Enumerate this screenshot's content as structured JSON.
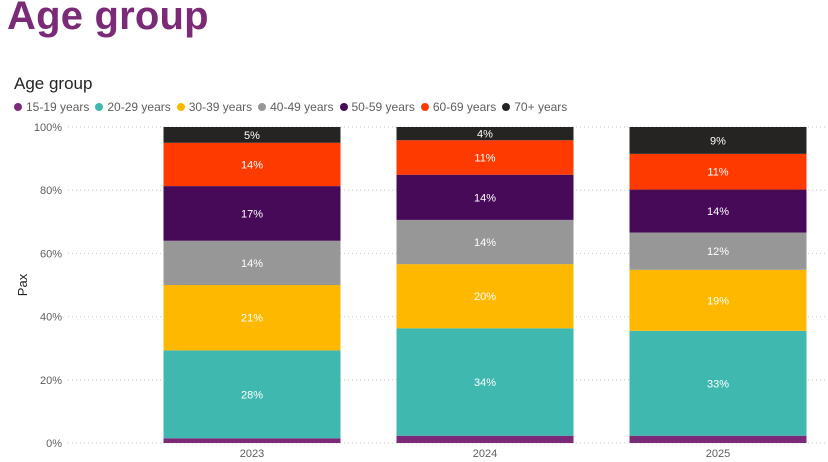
{
  "page": {
    "title": "Age group"
  },
  "chart_data": {
    "type": "bar",
    "stacked": true,
    "title": "Age group",
    "xlabel": "",
    "ylabel": "Pax",
    "ylim": [
      0,
      100
    ],
    "yticks": [
      "0%",
      "20%",
      "40%",
      "60%",
      "80%",
      "100%"
    ],
    "grid": true,
    "legend_position": "top-left",
    "categories": [
      "2023",
      "2024",
      "2025"
    ],
    "series": [
      {
        "name": "15-19 years",
        "color": "#7b2a78",
        "values": [
          1.5,
          2.3,
          2.3
        ],
        "labels": [
          "",
          "",
          ""
        ]
      },
      {
        "name": "20-29 years",
        "color": "#3fb8b0",
        "values": [
          27.8,
          34.0,
          33.2
        ],
        "labels": [
          "28%",
          "34%",
          "33%"
        ]
      },
      {
        "name": "30-39 years",
        "color": "#ffb800",
        "values": [
          20.7,
          20.3,
          19.3
        ],
        "labels": [
          "21%",
          "20%",
          "19%"
        ]
      },
      {
        "name": "40-49 years",
        "color": "#979797",
        "values": [
          14.0,
          14.0,
          11.8
        ],
        "labels": [
          "14%",
          "14%",
          "12%"
        ]
      },
      {
        "name": "50-59 years",
        "color": "#470a59",
        "values": [
          17.3,
          14.3,
          13.6
        ],
        "labels": [
          "17%",
          "14%",
          "14%"
        ]
      },
      {
        "name": "60-69 years",
        "color": "#ff3a00",
        "values": [
          13.7,
          10.9,
          11.3
        ],
        "labels": [
          "14%",
          "11%",
          "11%"
        ]
      },
      {
        "name": "70+ years",
        "color": "#252423",
        "values": [
          5.0,
          4.2,
          8.5
        ],
        "labels": [
          "5%",
          "4%",
          "9%"
        ]
      }
    ]
  }
}
